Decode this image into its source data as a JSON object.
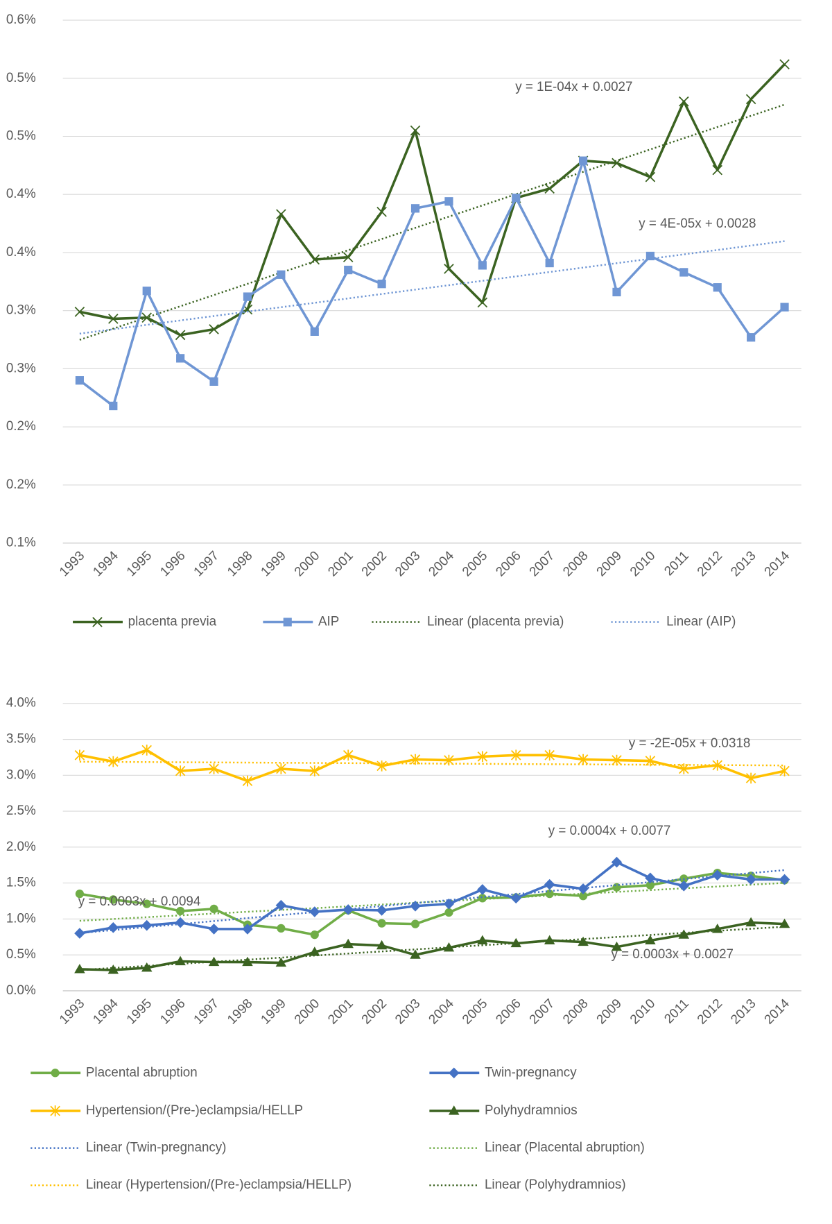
{
  "chart_data": [
    {
      "type": "line",
      "categories": [
        "1993",
        "1994",
        "1995",
        "1996",
        "1997",
        "1998",
        "1999",
        "2000",
        "2001",
        "2002",
        "2003",
        "2004",
        "2005",
        "2006",
        "2007",
        "2008",
        "2009",
        "2010",
        "2011",
        "2012",
        "2013",
        "2014"
      ],
      "ylim": [
        0.1,
        0.55
      ],
      "yticks": [
        {
          "value": 0.1,
          "label": "0.1%"
        },
        {
          "value": 0.15,
          "label": "0.2%"
        },
        {
          "value": 0.2,
          "label": "0.2%"
        },
        {
          "value": 0.25,
          "label": "0.3%"
        },
        {
          "value": 0.3,
          "label": "0.3%"
        },
        {
          "value": 0.35,
          "label": "0.4%"
        },
        {
          "value": 0.4,
          "label": "0.4%"
        },
        {
          "value": 0.45,
          "label": "0.5%"
        },
        {
          "value": 0.5,
          "label": "0.5%"
        },
        {
          "value": 0.55,
          "label": "0.6%"
        }
      ],
      "grid": true,
      "series": [
        {
          "name": "placenta previa",
          "color": "#3b6321",
          "marker": "x",
          "values": [
            0.299,
            0.293,
            0.294,
            0.279,
            0.284,
            0.301,
            0.383,
            0.344,
            0.346,
            0.385,
            0.455,
            0.336,
            0.307,
            0.397,
            0.405,
            0.429,
            0.427,
            0.415,
            0.48,
            0.421,
            0.482,
            0.512
          ],
          "trendline": {
            "name": "Linear (placenta previa)",
            "label": "y = 1E-04x + 0.0027"
          }
        },
        {
          "name": "AIP",
          "color": "#6f96d4",
          "marker": "square",
          "values": [
            0.24,
            0.218,
            0.317,
            0.259,
            0.239,
            0.312,
            0.331,
            0.282,
            0.335,
            0.323,
            0.388,
            0.394,
            0.339,
            0.397,
            0.341,
            0.429,
            0.316,
            0.347,
            0.333,
            0.32,
            0.277,
            0.303
          ],
          "trendline": {
            "name": "Linear (AIP)",
            "label": "y = 4E-05x + 0.0028"
          }
        }
      ]
    },
    {
      "type": "line",
      "categories": [
        "1993",
        "1994",
        "1995",
        "1996",
        "1997",
        "1998",
        "1999",
        "2000",
        "2001",
        "2002",
        "2003",
        "2004",
        "2005",
        "2006",
        "2007",
        "2008",
        "2009",
        "2010",
        "2011",
        "2012",
        "2013",
        "2014"
      ],
      "ylim": [
        0,
        4
      ],
      "yticks": [
        {
          "value": 0,
          "label": "0.0%"
        },
        {
          "value": 0.5,
          "label": "0.5%"
        },
        {
          "value": 1,
          "label": "1.0%"
        },
        {
          "value": 1.5,
          "label": "1.5%"
        },
        {
          "value": 2,
          "label": "2.0%"
        },
        {
          "value": 2.5,
          "label": "2.5%"
        },
        {
          "value": 3,
          "label": "3.0%"
        },
        {
          "value": 3.5,
          "label": "3.5%"
        },
        {
          "value": 4,
          "label": "4.0%"
        }
      ],
      "grid": true,
      "series": [
        {
          "name": "Placental abruption",
          "color": "#70ad47",
          "marker": "circle",
          "values": [
            1.35,
            1.27,
            1.21,
            1.11,
            1.14,
            0.92,
            0.87,
            0.78,
            1.12,
            0.94,
            0.93,
            1.09,
            1.29,
            1.3,
            1.35,
            1.32,
            1.44,
            1.47,
            1.56,
            1.64,
            1.6,
            1.54
          ],
          "trendline": {
            "name": "Linear (Placental abruption)",
            "label": "y = 0.0003x + 0.0094"
          }
        },
        {
          "name": "Twin-pregnancy",
          "color": "#4472c4",
          "marker": "diamond",
          "values": [
            0.8,
            0.88,
            0.91,
            0.95,
            0.86,
            0.86,
            1.19,
            1.1,
            1.13,
            1.12,
            1.18,
            1.21,
            1.41,
            1.29,
            1.48,
            1.42,
            1.79,
            1.57,
            1.46,
            1.61,
            1.55,
            1.55
          ],
          "trendline": {
            "name": "Linear (Twin-pregnancy)",
            "label": "y = 0.0004x + 0.0077"
          }
        },
        {
          "name": "Hypertension/(Pre-)eclampsia/HELLP",
          "color": "#ffc000",
          "marker": "star",
          "values": [
            3.28,
            3.19,
            3.35,
            3.06,
            3.09,
            2.92,
            3.09,
            3.06,
            3.28,
            3.13,
            3.22,
            3.21,
            3.26,
            3.28,
            3.28,
            3.22,
            3.21,
            3.2,
            3.09,
            3.14,
            2.96,
            3.06
          ],
          "trendline": {
            "name": "Linear (Hypertension/(Pre-)eclampsia/HELLP)",
            "label": "y = -2E-05x + 0.0318"
          }
        },
        {
          "name": "Polyhydramnios",
          "color": "#3b6321",
          "marker": "triangle",
          "values": [
            0.3,
            0.29,
            0.32,
            0.41,
            0.4,
            0.4,
            0.39,
            0.54,
            0.65,
            0.63,
            0.5,
            0.6,
            0.7,
            0.66,
            0.7,
            0.68,
            0.61,
            0.7,
            0.78,
            0.86,
            0.95,
            0.93
          ],
          "trendline": {
            "name": "Linear (Polyhydramnios)",
            "label": "y = 0.0003x + 0.0027"
          }
        }
      ]
    }
  ]
}
